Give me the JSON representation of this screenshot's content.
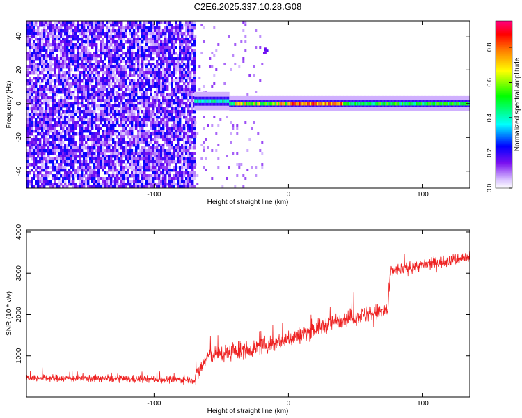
{
  "figure_title": "C2E6.2025.337.10.28.G08",
  "chart_data": [
    {
      "type": "heatmap",
      "xlabel": "Height of straight line (km)",
      "ylabel": "Frequency (Hz)",
      "xlim": [
        -195,
        135
      ],
      "ylim": [
        -50,
        49
      ],
      "xticks": [
        -100,
        0,
        100
      ],
      "yticks": [
        -40,
        -20,
        0,
        20,
        40
      ],
      "colorbar": {
        "label": "Normalized spectral amplitude",
        "range": [
          0,
          0.95
        ],
        "ticks": [
          0.0,
          0.2,
          0.4,
          0.6,
          0.8
        ],
        "tick_labels": [
          "0.0",
          "0.2",
          "0.4",
          "0.6",
          "0.8"
        ],
        "colormap": [
          "#ffffff",
          "#c9a6ff",
          "#6a00e0",
          "#0000ff",
          "#00ffff",
          "#00ff00",
          "#ffff00",
          "#ff8000",
          "#ff0000",
          "#ff0080"
        ]
      },
      "regions": [
        {
          "description_ref": "noise",
          "x": [
            -195,
            -70
          ],
          "y": [
            -50,
            49
          ],
          "amplitude": [
            0.05,
            0.35
          ]
        },
        {
          "description_ref": "signal",
          "x": [
            -70,
            135
          ],
          "frequency_center": 0,
          "amplitude_peak": 0.9
        }
      ]
    },
    {
      "type": "line",
      "xlabel": "Height of straight line (km)",
      "ylabel": "SNR (10 * v/v)",
      "xlim": [
        -195,
        135
      ],
      "ylim": [
        0,
        4050
      ],
      "xticks": [
        -100,
        0,
        100
      ],
      "yticks": [
        1000,
        2000,
        3000,
        4000
      ],
      "series": [
        {
          "color": "#ee2222",
          "trend": [
            {
              "x": -195,
              "y": 470
            },
            {
              "x": -70,
              "y": 420
            },
            {
              "x": -60,
              "y": 1000
            },
            {
              "x": -30,
              "y": 1150
            },
            {
              "x": 0,
              "y": 1400
            },
            {
              "x": 40,
              "y": 1900
            },
            {
              "x": 74,
              "y": 2100
            },
            {
              "x": 76,
              "y": 3050
            },
            {
              "x": 135,
              "y": 3400
            }
          ]
        }
      ]
    }
  ]
}
